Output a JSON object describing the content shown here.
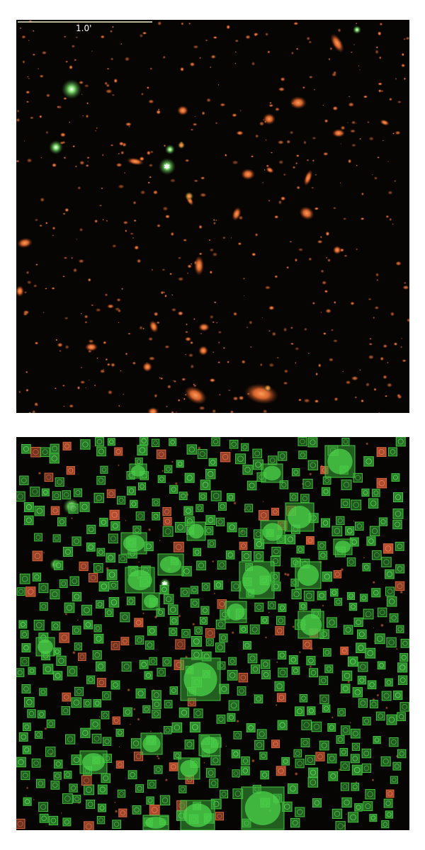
{
  "figure": {
    "top_panel": {
      "scale_bar_label": "1.0'",
      "colors": {
        "background": "#070504",
        "galaxy": "#d4622c",
        "star": "#6fd050",
        "scale_bar": "#f0f0c8"
      }
    },
    "bottom_panel": {
      "colors": {
        "background": "#070504",
        "mask_box": "#43c43e",
        "mask_fill": "#38a838",
        "flagged_box": "#d8643c"
      }
    }
  }
}
